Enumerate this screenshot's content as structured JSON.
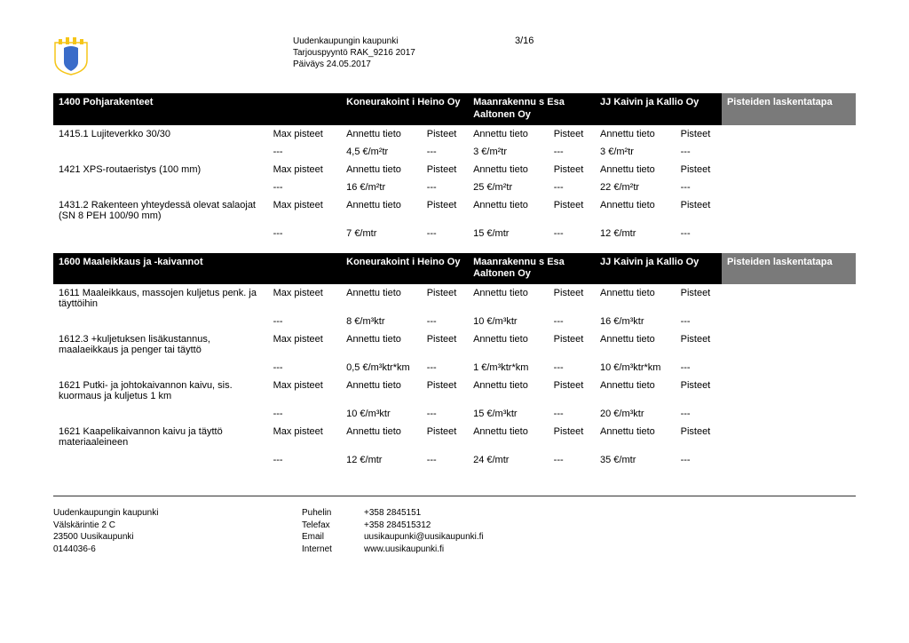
{
  "header": {
    "org": "Uudenkaupungin kaupunki",
    "ref": "Tarjouspyyntö RAK_9216 2017",
    "date": "Päiväys 24.05.2017",
    "page": "3/16"
  },
  "labels": {
    "max": "Max pisteet",
    "given": "Annettu tieto",
    "pts": "Pisteet",
    "calc": "Pisteiden laskentatapa",
    "dash": "---"
  },
  "section1": {
    "title": "1400 Pohjarakenteet",
    "vendors": [
      "Koneurakoint i Heino Oy",
      "Maanrakennu s Esa Aaltonen Oy",
      "JJ Kaivin ja Kallio Oy"
    ],
    "rows": [
      {
        "label": "1415.1 Lujiteverkko 30/30",
        "vals": [
          "4,5 €/m²tr",
          "3 €/m²tr",
          "3 €/m²tr"
        ]
      },
      {
        "label": "1421 XPS-routaeristys (100 mm)",
        "vals": [
          "16 €/m²tr",
          "25 €/m²tr",
          "22 €/m²tr"
        ]
      },
      {
        "label": "1431.2 Rakenteen yhteydessä olevat salaojat (SN 8 PEH 100/90 mm)",
        "vals": [
          "7 €/mtr",
          "15 €/mtr",
          "12 €/mtr"
        ]
      }
    ]
  },
  "section2": {
    "title": "1600 Maaleikkaus ja -kaivannot",
    "vendors": [
      "Koneurakoint i Heino Oy",
      "Maanrakennu s Esa Aaltonen Oy",
      "JJ Kaivin ja Kallio Oy"
    ],
    "rows": [
      {
        "label": "1611 Maaleikkaus, massojen kuljetus penk. ja täyttöihin",
        "vals": [
          "8 €/m³ktr",
          "10 €/m³ktr",
          "16 €/m³ktr"
        ]
      },
      {
        "label": "1612.3 +kuljetuksen lisäkustannus, maalaeikkaus ja penger tai täyttö",
        "vals": [
          "0,5 €/m³ktr*km",
          "1 €/m³ktr*km",
          "10 €/m³ktr*km"
        ]
      },
      {
        "label": "1621 Putki- ja johtokaivannon kaivu, sis. kuormaus ja kuljetus 1 km",
        "vals": [
          "10 €/m³ktr",
          "15 €/m³ktr",
          "20 €/m³ktr"
        ]
      },
      {
        "label": "1621 Kaapelikaivannon kaivu ja täyttö materiaaleineen",
        "vals": [
          "12 €/mtr",
          "24 €/mtr",
          "35 €/mtr"
        ]
      }
    ]
  },
  "footer": {
    "lines1": [
      "Uudenkaupungin kaupunki",
      "Välskärintie 2 C",
      "23500 Uusikaupunki",
      "0144036-6"
    ],
    "lines2": [
      "Puhelin",
      "Telefax",
      "Email",
      "Internet"
    ],
    "lines3": [
      "+358 2845151",
      "+358 284515312",
      "uusikaupunki@uusikaupunki.fi",
      "www.uusikaupunki.fi"
    ]
  }
}
